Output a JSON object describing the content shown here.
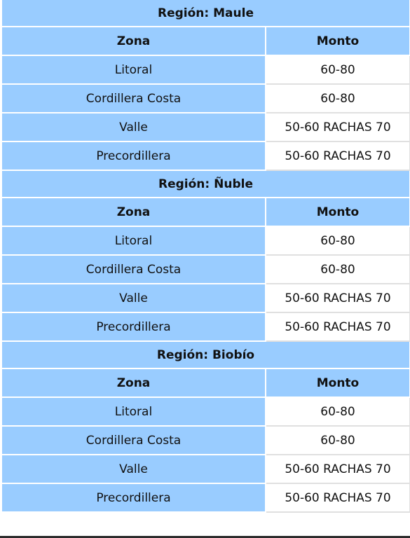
{
  "columns": {
    "zona": "Zona",
    "monto": "Monto"
  },
  "regions": [
    {
      "title": "Región: Maule",
      "rows": [
        {
          "zona": "Litoral",
          "monto": "60-80"
        },
        {
          "zona": "Cordillera Costa",
          "monto": "60-80"
        },
        {
          "zona": "Valle",
          "monto": "50-60 RACHAS 70"
        },
        {
          "zona": "Precordillera",
          "monto": "50-60 RACHAS 70"
        }
      ]
    },
    {
      "title": "Región: Ñuble",
      "rows": [
        {
          "zona": "Litoral",
          "monto": "60-80"
        },
        {
          "zona": "Cordillera Costa",
          "monto": "60-80"
        },
        {
          "zona": "Valle",
          "monto": "50-60 RACHAS 70"
        },
        {
          "zona": "Precordillera",
          "monto": "50-60 RACHAS 70"
        }
      ]
    },
    {
      "title": "Región: Biobío",
      "rows": [
        {
          "zona": "Litoral",
          "monto": "60-80"
        },
        {
          "zona": "Cordillera Costa",
          "monto": "60-80"
        },
        {
          "zona": "Valle",
          "monto": "50-60 RACHAS 70"
        },
        {
          "zona": "Precordillera",
          "monto": "50-60 RACHAS 70"
        }
      ]
    }
  ]
}
